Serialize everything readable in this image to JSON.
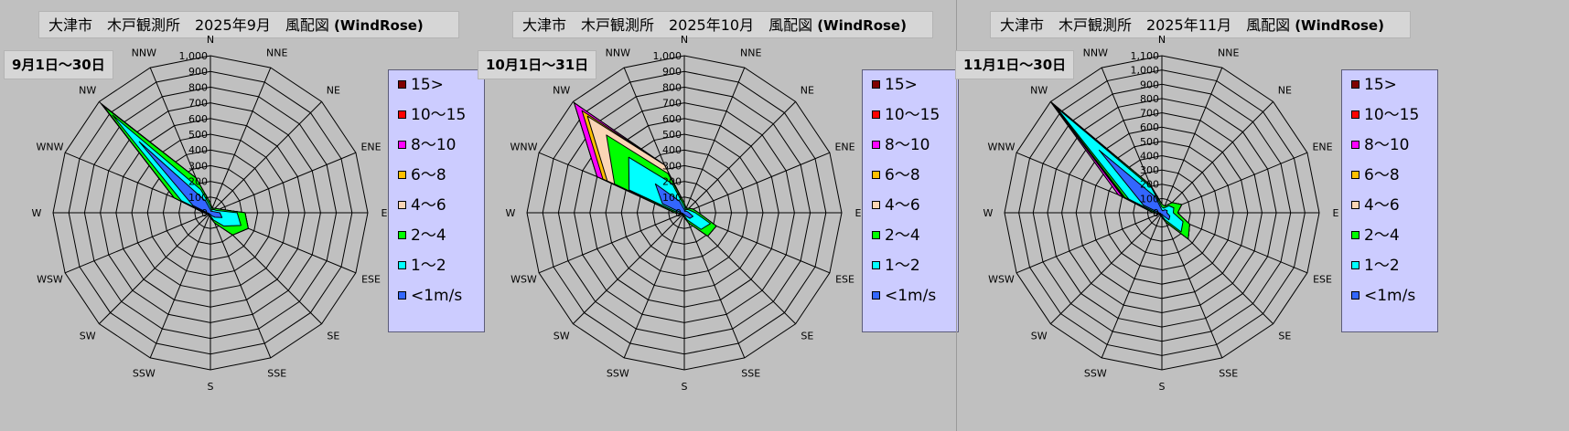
{
  "charts": [
    {
      "title": "大津市　木戸観測所　2025年9月　風配図",
      "title_suffix": "(WindRose)",
      "period": "9月1日～30日",
      "max": 1000,
      "tick_step": 100,
      "tick_labels": [
        "0",
        "100",
        "200",
        "300",
        "400",
        "500",
        "600",
        "700",
        "800",
        "900",
        "1,000"
      ]
    },
    {
      "title": "大津市　木戸観測所　2025年10月　風配図",
      "title_suffix": "(WindRose)",
      "period": "10月1日～31日",
      "max": 1000,
      "tick_step": 100,
      "tick_labels": [
        "0",
        "100",
        "200",
        "300",
        "400",
        "500",
        "600",
        "700",
        "800",
        "900",
        "1,000"
      ]
    },
    {
      "title": "大津市　木戸観測所　2025年11月　風配図",
      "title_suffix": "(WindRose)",
      "period": "11月1日～30日",
      "max": 1100,
      "tick_step": 100,
      "tick_labels": [
        "0",
        "100",
        "200",
        "300",
        "400",
        "500",
        "600",
        "700",
        "800",
        "900",
        "1,000",
        "1,100"
      ]
    }
  ],
  "directions": [
    "N",
    "NNE",
    "NE",
    "ENE",
    "E",
    "ESE",
    "SE",
    "SSE",
    "S",
    "SSW",
    "SW",
    "WSW",
    "W",
    "WNW",
    "NW",
    "NNW"
  ],
  "legend": [
    {
      "label": "15>",
      "color": "#800000"
    },
    {
      "label": "10～15",
      "color": "#ff0000"
    },
    {
      "label": "8～10",
      "color": "#ff00ff"
    },
    {
      "label": "6～8",
      "color": "#ffc000"
    },
    {
      "label": "4～6",
      "color": "#fbd5b5"
    },
    {
      "label": "2～4",
      "color": "#00ff00"
    },
    {
      "label": "1～2",
      "color": "#00ffff"
    },
    {
      "label": "<1m/s",
      "color": "#3366ff"
    }
  ],
  "chart_data": [
    {
      "type": "radar",
      "categories": [
        "N",
        "NNE",
        "NE",
        "ENE",
        "E",
        "ESE",
        "SE",
        "SSE",
        "S",
        "SSW",
        "SW",
        "WSW",
        "W",
        "WNW",
        "NW",
        "NNW"
      ],
      "rlim": [
        0,
        1000
      ],
      "series": [
        {
          "name": "15>",
          "values": [
            60,
            30,
            40,
            60,
            220,
            260,
            200,
            70,
            30,
            20,
            20,
            20,
            40,
            250,
            980,
            240
          ]
        },
        {
          "name": "10～15",
          "values": [
            60,
            30,
            40,
            60,
            220,
            260,
            200,
            70,
            30,
            20,
            20,
            20,
            40,
            250,
            980,
            240
          ]
        },
        {
          "name": "8～10",
          "values": [
            60,
            30,
            40,
            60,
            220,
            260,
            200,
            70,
            30,
            20,
            20,
            20,
            40,
            250,
            980,
            240
          ]
        },
        {
          "name": "6～8",
          "values": [
            60,
            30,
            40,
            60,
            220,
            260,
            200,
            70,
            30,
            20,
            20,
            20,
            40,
            250,
            975,
            240
          ]
        },
        {
          "name": "4～6",
          "values": [
            60,
            30,
            40,
            60,
            220,
            260,
            200,
            70,
            30,
            20,
            20,
            20,
            40,
            250,
            970,
            240
          ]
        },
        {
          "name": "2～4",
          "values": [
            60,
            30,
            40,
            60,
            220,
            260,
            200,
            70,
            30,
            20,
            20,
            20,
            40,
            250,
            960,
            240
          ]
        },
        {
          "name": "1～2",
          "values": [
            40,
            20,
            30,
            40,
            170,
            210,
            120,
            50,
            20,
            15,
            15,
            15,
            30,
            200,
            880,
            160
          ]
        },
        {
          "name": "<1m/s",
          "values": [
            20,
            10,
            15,
            20,
            60,
            80,
            40,
            20,
            10,
            10,
            10,
            10,
            20,
            120,
            640,
            80
          ]
        }
      ]
    },
    {
      "type": "radar",
      "categories": [
        "N",
        "NNE",
        "NE",
        "ENE",
        "E",
        "ESE",
        "SE",
        "SSE",
        "S",
        "SSW",
        "SW",
        "WSW",
        "W",
        "WNW",
        "NW",
        "NNW"
      ],
      "rlim": [
        0,
        1000
      ],
      "series": [
        {
          "name": "15>",
          "values": [
            60,
            30,
            40,
            60,
            90,
            220,
            210,
            70,
            30,
            20,
            20,
            20,
            60,
            600,
            990,
            330
          ]
        },
        {
          "name": "10～15",
          "values": [
            60,
            30,
            40,
            60,
            90,
            220,
            210,
            70,
            30,
            20,
            20,
            20,
            60,
            600,
            990,
            330
          ]
        },
        {
          "name": "8～10",
          "values": [
            60,
            30,
            40,
            60,
            90,
            220,
            210,
            70,
            30,
            20,
            20,
            20,
            60,
            600,
            990,
            330
          ]
        },
        {
          "name": "6～8",
          "values": [
            60,
            30,
            40,
            60,
            90,
            220,
            210,
            70,
            30,
            20,
            20,
            20,
            60,
            560,
            920,
            330
          ]
        },
        {
          "name": "4～6",
          "values": [
            60,
            30,
            40,
            60,
            90,
            220,
            210,
            70,
            30,
            20,
            20,
            20,
            60,
            530,
            870,
            330
          ]
        },
        {
          "name": "2～4",
          "values": [
            60,
            30,
            40,
            60,
            90,
            220,
            210,
            70,
            30,
            20,
            20,
            20,
            60,
            480,
            700,
            270
          ]
        },
        {
          "name": "1～2",
          "values": [
            40,
            20,
            30,
            40,
            70,
            180,
            150,
            50,
            20,
            15,
            15,
            15,
            40,
            380,
            500,
            200
          ]
        },
        {
          "name": "<1m/s",
          "values": [
            20,
            10,
            15,
            20,
            30,
            60,
            50,
            20,
            10,
            10,
            10,
            10,
            20,
            150,
            260,
            80
          ]
        }
      ]
    },
    {
      "type": "radar",
      "categories": [
        "N",
        "NNE",
        "NE",
        "ENE",
        "E",
        "ESE",
        "SE",
        "SSE",
        "S",
        "SSW",
        "SW",
        "WSW",
        "W",
        "WNW",
        "NW",
        "NNW"
      ],
      "rlim": [
        0,
        1100
      ],
      "series": [
        {
          "name": "15>",
          "values": [
            60,
            50,
            100,
            150,
            110,
            210,
            260,
            70,
            30,
            20,
            20,
            20,
            60,
            330,
            1100,
            210
          ]
        },
        {
          "name": "10～15",
          "values": [
            60,
            50,
            100,
            150,
            110,
            210,
            260,
            70,
            30,
            20,
            20,
            20,
            60,
            330,
            1100,
            210
          ]
        },
        {
          "name": "8～10",
          "values": [
            60,
            50,
            100,
            150,
            110,
            210,
            260,
            70,
            30,
            20,
            20,
            20,
            60,
            330,
            1100,
            210
          ]
        },
        {
          "name": "6～8",
          "values": [
            60,
            50,
            100,
            150,
            110,
            210,
            260,
            70,
            30,
            20,
            20,
            20,
            60,
            300,
            1090,
            210
          ]
        },
        {
          "name": "4～6",
          "values": [
            60,
            50,
            100,
            150,
            110,
            210,
            260,
            70,
            30,
            20,
            20,
            20,
            60,
            290,
            1080,
            210
          ]
        },
        {
          "name": "2～4",
          "values": [
            60,
            50,
            100,
            150,
            110,
            210,
            260,
            70,
            30,
            20,
            20,
            20,
            60,
            280,
            1070,
            210
          ]
        },
        {
          "name": "1～2",
          "values": [
            40,
            35,
            70,
            90,
            80,
            160,
            190,
            50,
            20,
            15,
            15,
            15,
            40,
            250,
            1040,
            190
          ]
        },
        {
          "name": "<1m/s",
          "values": [
            20,
            15,
            30,
            40,
            35,
            60,
            70,
            20,
            10,
            10,
            10,
            10,
            20,
            140,
            620,
            120
          ]
        }
      ]
    }
  ]
}
